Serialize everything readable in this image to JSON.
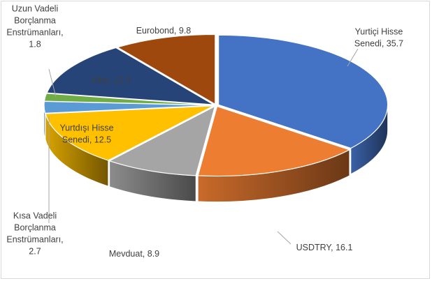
{
  "chart_data": {
    "type": "pie",
    "style": "3d-exploded",
    "title": "",
    "legend": "none",
    "series": [
      {
        "slices": [
          {
            "label": "Yurtiçi Hisse Senedi",
            "label_lines": [
              "Yurtiçi Hisse",
              "Senedi, 35.7"
            ],
            "value": 35.7,
            "color": "#4472c4"
          },
          {
            "label": "USDTRY",
            "label_lines": [
              "USDTRY, 16.1"
            ],
            "value": 16.1,
            "color": "#ed7d31"
          },
          {
            "label": "Mevduat",
            "label_lines": [
              "Mevduat, 8.9"
            ],
            "value": 8.9,
            "color": "#a5a5a5"
          },
          {
            "label": "Yurtdışı Hisse Senedi",
            "label_lines": [
              "Yurtdışı Hisse",
              "Senedi, 12.5"
            ],
            "value": 12.5,
            "color": "#ffc000"
          },
          {
            "label": "Kısa Vadeli Borçlanma Enstrümanları",
            "label_lines": [
              "Kısa Vadeli",
              "Borçlanma",
              "Enstrümanları,",
              "2.7"
            ],
            "value": 2.7,
            "color": "#5b9bd5"
          },
          {
            "label": "Uzun Vadeli Borçlanma Enstrümanları",
            "label_lines": [
              "Uzun Vadeli",
              "Borçlanma",
              "Enstrümanları,",
              "1.8"
            ],
            "value": 1.8,
            "color": "#70ad47"
          },
          {
            "label": "Altın",
            "label_lines": [
              "Altın, 12.5"
            ],
            "value": 12.5,
            "color": "#264478"
          },
          {
            "label": "Eurobond",
            "label_lines": [
              "Eurobond, 9.8"
            ],
            "value": 9.8,
            "color": "#9e480e"
          }
        ]
      }
    ]
  }
}
